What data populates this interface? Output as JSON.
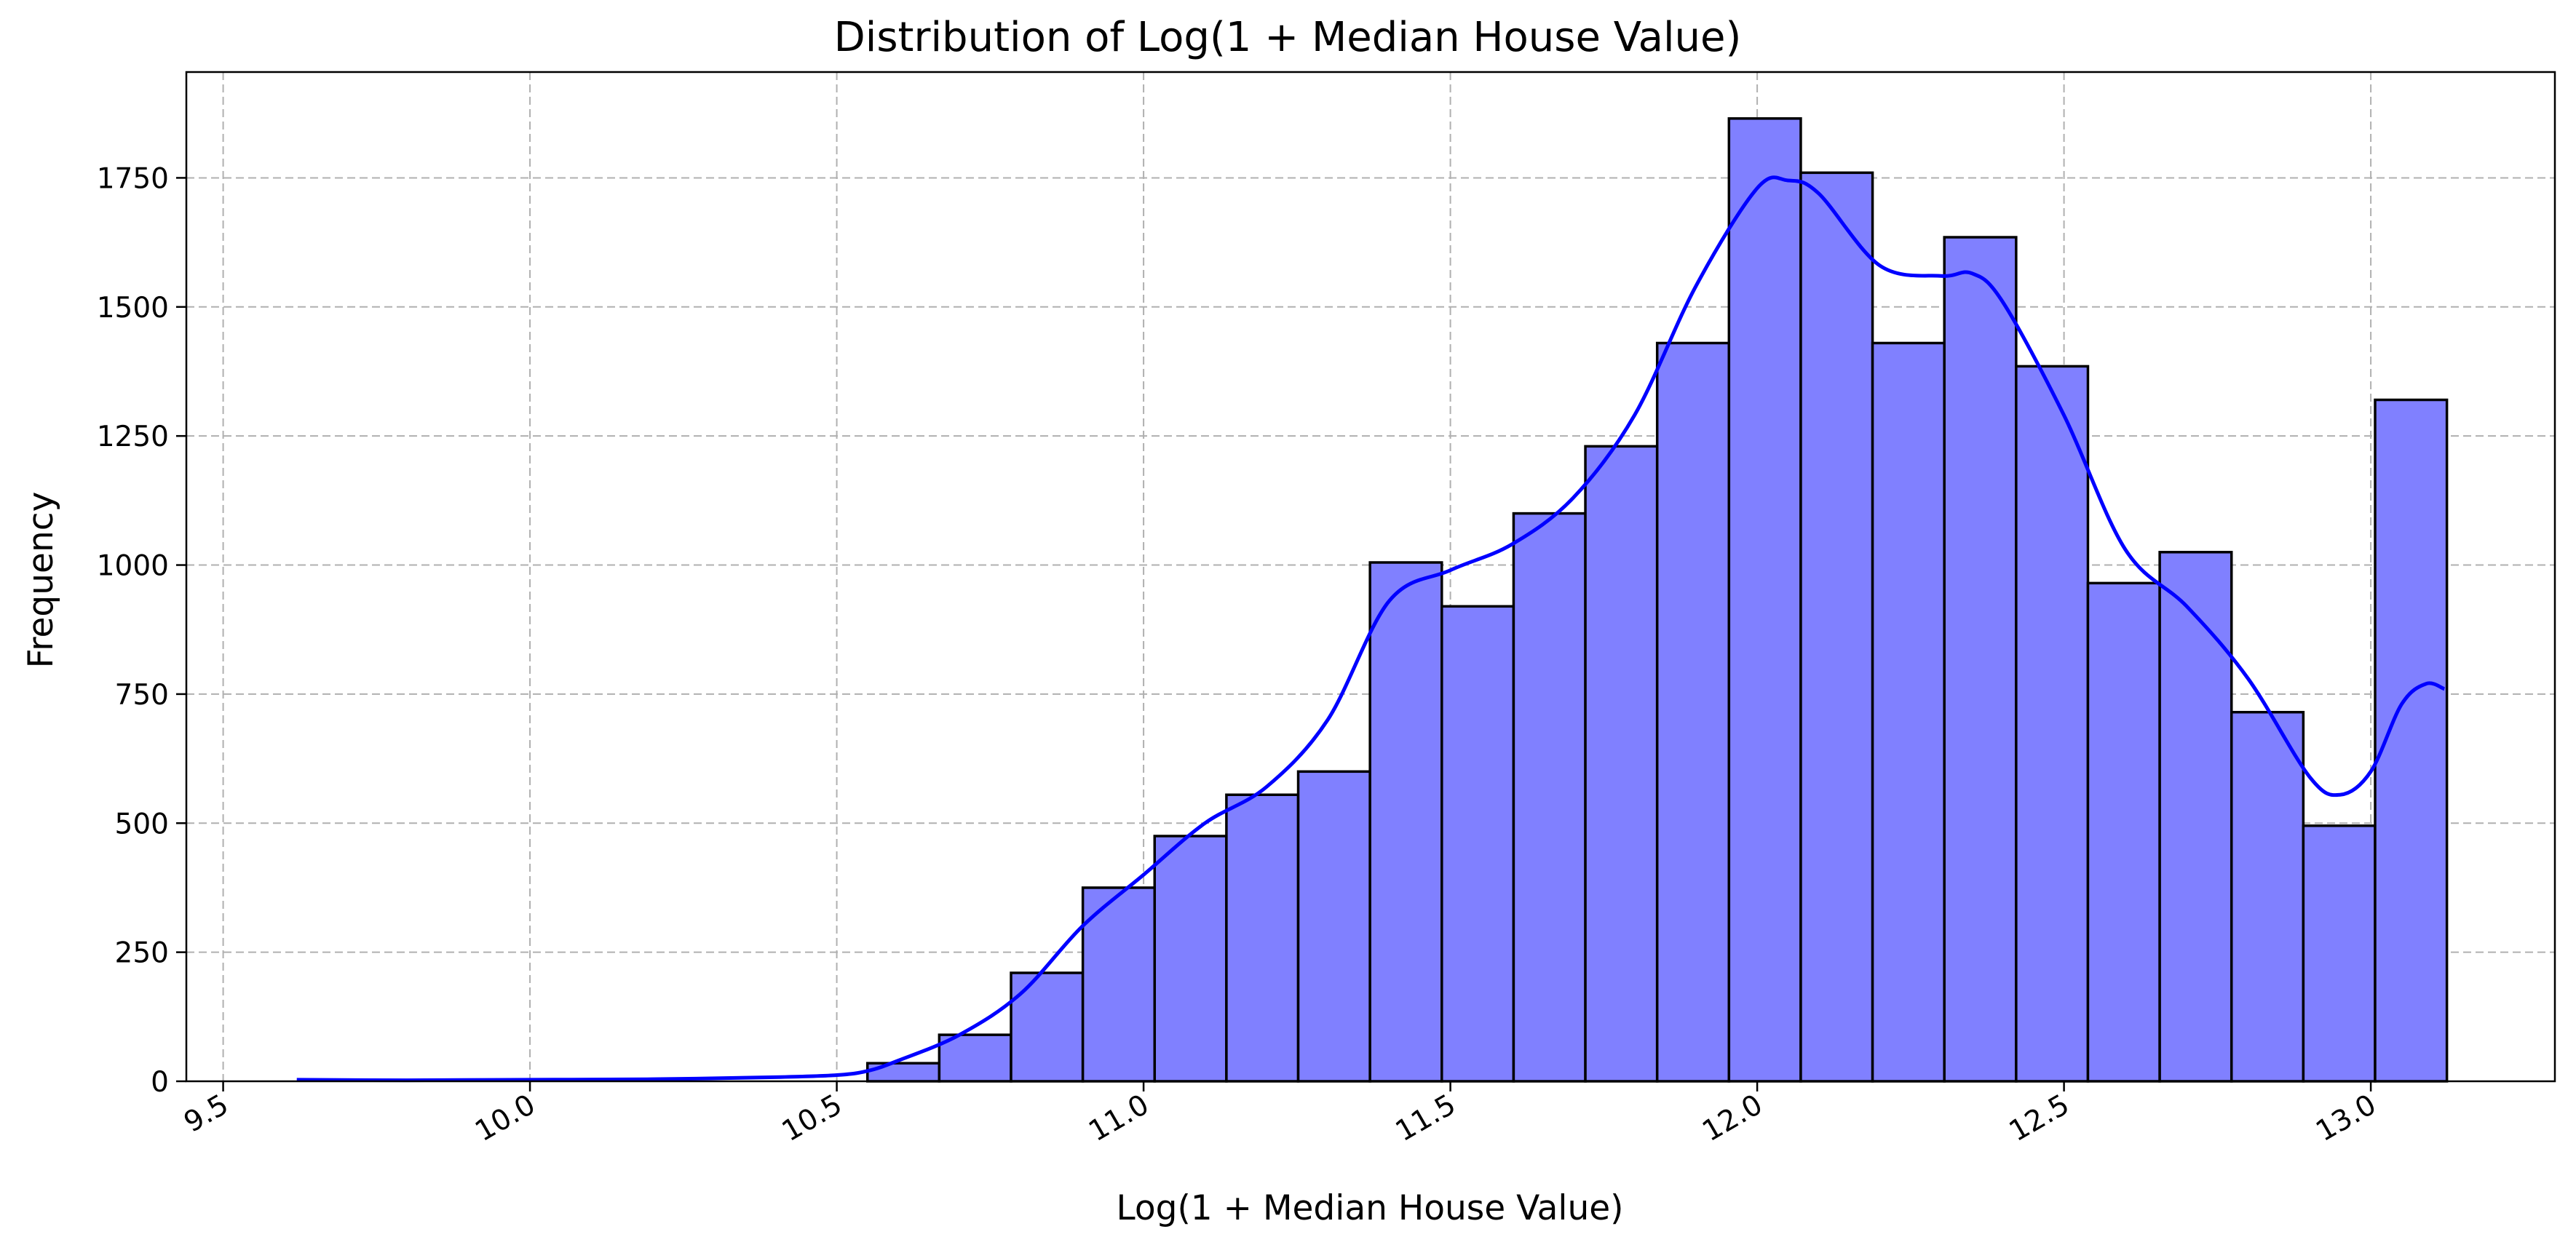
{
  "chart_data": {
    "type": "bar",
    "title": "Distribution of Log(1 + Median House Value)",
    "xlabel": "Log(1 + Median House Value)",
    "ylabel": "Frequency",
    "xlim": [
      9.44,
      13.3
    ],
    "ylim": [
      0,
      1955
    ],
    "grid": true,
    "x_ticks": [
      9.5,
      10.0,
      10.5,
      11.0,
      11.5,
      12.0,
      12.5,
      13.0
    ],
    "x_tick_labels": [
      "9.5",
      "10.0",
      "10.5",
      "11.0",
      "11.5",
      "12.0",
      "12.5",
      "13.0"
    ],
    "y_ticks": [
      0,
      250,
      500,
      750,
      1000,
      1250,
      1500,
      1750
    ],
    "y_tick_labels": [
      "0",
      "250",
      "500",
      "750",
      "1000",
      "1250",
      "1500",
      "1750"
    ],
    "bins": {
      "edges": [
        10.55,
        10.667,
        10.784,
        10.901,
        11.018,
        11.135,
        11.252,
        11.369,
        11.486,
        11.603,
        11.72,
        11.837,
        11.954,
        12.071,
        12.188,
        12.305,
        12.422,
        12.539,
        12.656,
        12.773,
        12.89,
        13.007,
        13.124
      ],
      "values": [
        35,
        90,
        210,
        375,
        475,
        555,
        600,
        1005,
        920,
        1100,
        1230,
        1430,
        1865,
        1760,
        1430,
        1635,
        1385,
        965,
        1025,
        715,
        495,
        1320
      ]
    },
    "kde": {
      "x": [
        9.62,
        9.8,
        10.0,
        10.2,
        10.4,
        10.5,
        10.55,
        10.6,
        10.7,
        10.8,
        10.9,
        11.0,
        11.1,
        11.2,
        11.3,
        11.4,
        11.5,
        11.6,
        11.7,
        11.8,
        11.9,
        12.0,
        12.05,
        12.1,
        12.2,
        12.3,
        12.35,
        12.4,
        12.5,
        12.6,
        12.7,
        12.8,
        12.9,
        12.95,
        13.0,
        13.05,
        13.09,
        13.12
      ],
      "y": [
        3,
        2,
        3,
        4,
        8,
        12,
        20,
        40,
        90,
        170,
        300,
        400,
        500,
        570,
        700,
        930,
        990,
        1040,
        1130,
        1290,
        1540,
        1730,
        1745,
        1720,
        1580,
        1560,
        1565,
        1510,
        1290,
        1030,
        920,
        780,
        590,
        555,
        600,
        730,
        770,
        760
      ]
    },
    "colors": {
      "bar_fill": "#8080ff",
      "bar_edge": "#000000",
      "kde_line": "#0000ff",
      "grid": "#b0b0b0"
    }
  }
}
